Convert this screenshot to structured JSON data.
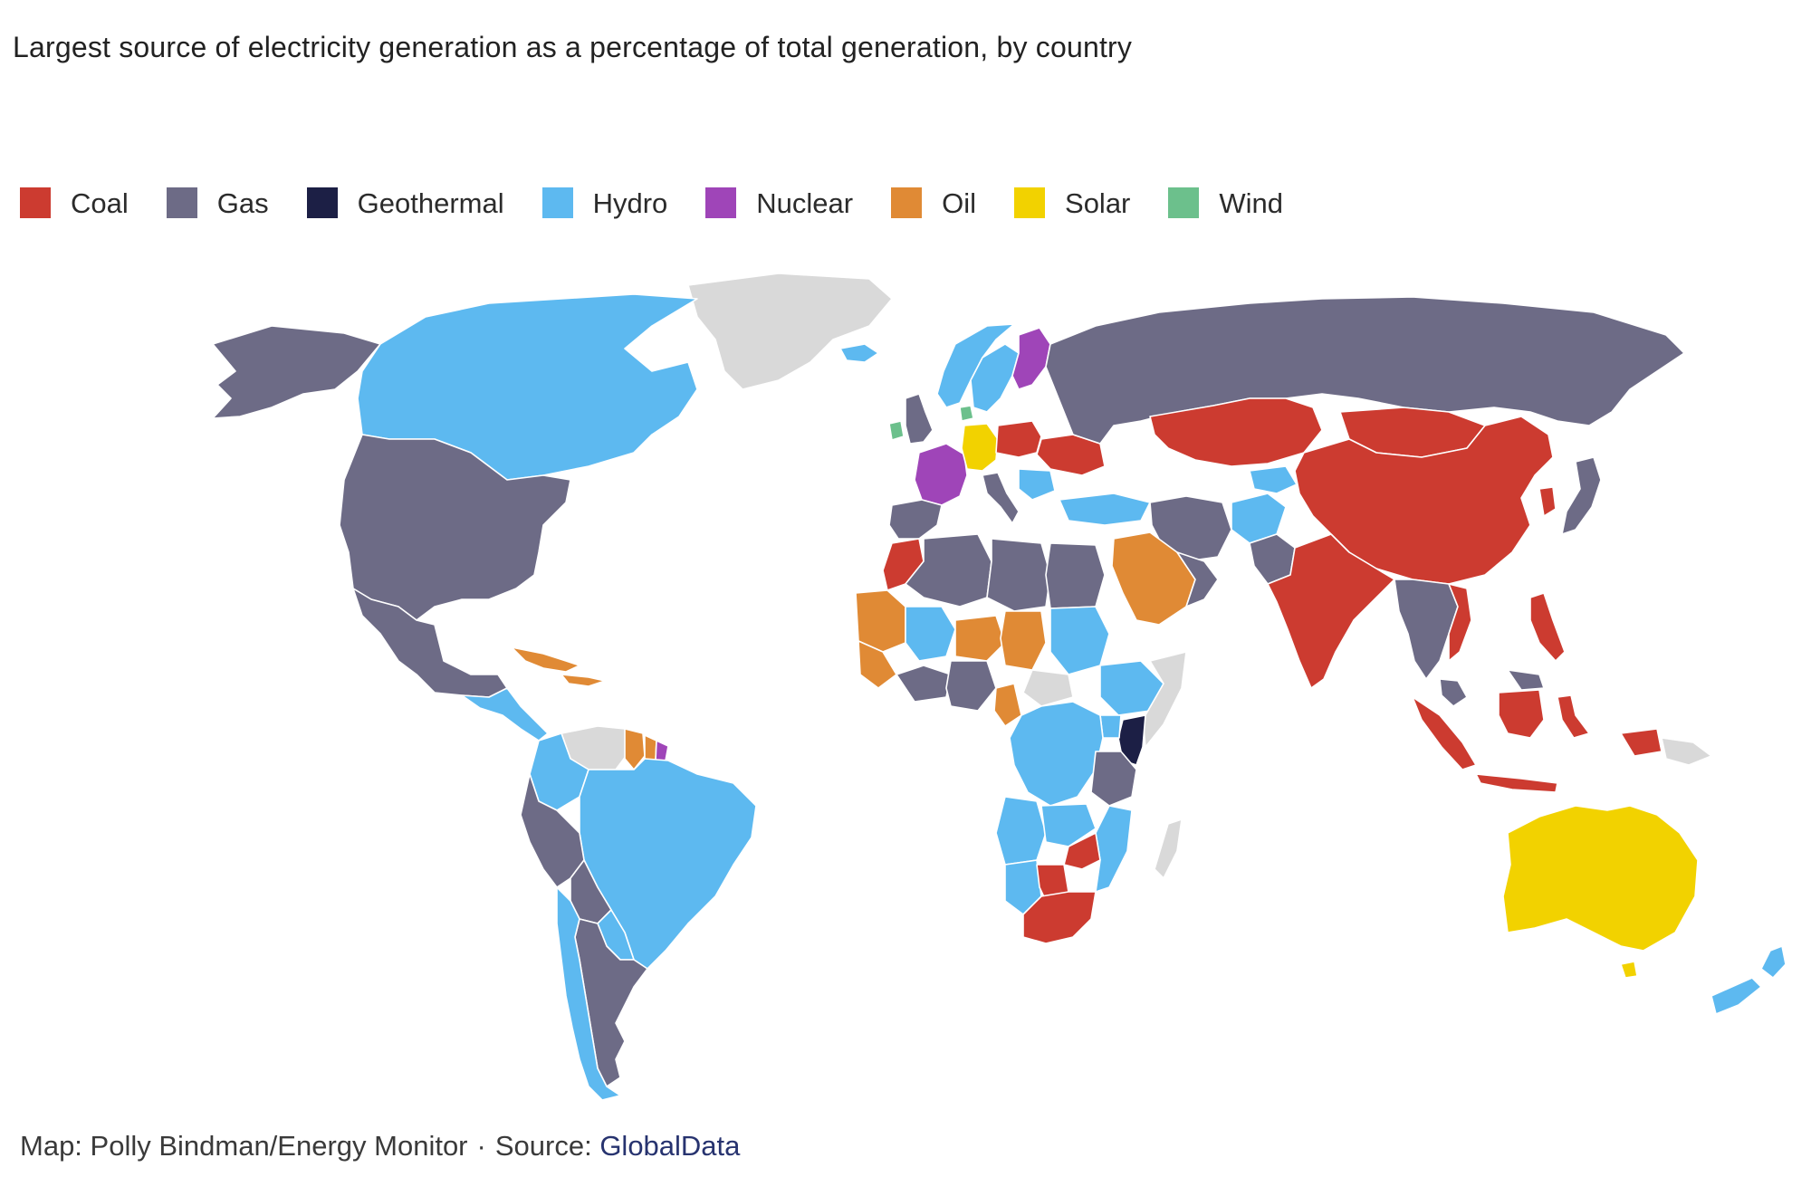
{
  "title": "Largest source of electricity generation as a percentage of total generation, by country",
  "legend": [
    {
      "label": "Coal",
      "color": "#cc3b30"
    },
    {
      "label": "Gas",
      "color": "#6d6b86"
    },
    {
      "label": "Geothermal",
      "color": "#1c1f45"
    },
    {
      "label": "Hydro",
      "color": "#5db9f0"
    },
    {
      "label": "Nuclear",
      "color": "#9f45b8"
    },
    {
      "label": "Oil",
      "color": "#e08a35"
    },
    {
      "label": "Solar",
      "color": "#f2d200"
    },
    {
      "label": "Wind",
      "color": "#6cc08c"
    }
  ],
  "no_data_color": "#d9d9d9",
  "credit": {
    "map": "Map: Polly Bindman/Energy Monitor",
    "separator": "·",
    "source_label": "Source:",
    "source_name": "GlobalData"
  },
  "map": {
    "regions": [
      {
        "name": "Greenland",
        "fill": "No data"
      },
      {
        "name": "Canada",
        "fill": "Hydro"
      },
      {
        "name": "Alaska (United States)",
        "fill": "Gas"
      },
      {
        "name": "United States",
        "fill": "Gas"
      },
      {
        "name": "Mexico",
        "fill": "Gas"
      },
      {
        "name": "Central America",
        "fill": "Hydro"
      },
      {
        "name": "Caribbean",
        "fill": "Oil"
      },
      {
        "name": "Venezuela",
        "fill": "No data"
      },
      {
        "name": "Guyana",
        "fill": "Oil"
      },
      {
        "name": "Suriname",
        "fill": "Oil"
      },
      {
        "name": "French Guiana",
        "fill": "Nuclear"
      },
      {
        "name": "Brazil",
        "fill": "Hydro"
      },
      {
        "name": "Colombia",
        "fill": "Hydro"
      },
      {
        "name": "Peru",
        "fill": "Gas"
      },
      {
        "name": "Bolivia",
        "fill": "Gas"
      },
      {
        "name": "Paraguay",
        "fill": "Hydro"
      },
      {
        "name": "Argentina",
        "fill": "Gas"
      },
      {
        "name": "Chile",
        "fill": "Hydro"
      },
      {
        "name": "Iceland",
        "fill": "Hydro"
      },
      {
        "name": "Norway",
        "fill": "Hydro"
      },
      {
        "name": "Sweden",
        "fill": "Hydro"
      },
      {
        "name": "Finland",
        "fill": "Nuclear"
      },
      {
        "name": "Denmark",
        "fill": "Wind"
      },
      {
        "name": "Ireland",
        "fill": "Wind"
      },
      {
        "name": "United Kingdom",
        "fill": "Gas"
      },
      {
        "name": "France",
        "fill": "Nuclear"
      },
      {
        "name": "Germany",
        "fill": "Solar"
      },
      {
        "name": "Poland",
        "fill": "Coal"
      },
      {
        "name": "Iberia",
        "fill": "Gas"
      },
      {
        "name": "Italy",
        "fill": "Gas"
      },
      {
        "name": "Turkey",
        "fill": "Hydro"
      },
      {
        "name": "Russia",
        "fill": "Gas"
      },
      {
        "name": "Kazakhstan",
        "fill": "Coal"
      },
      {
        "name": "China",
        "fill": "Coal"
      },
      {
        "name": "Mongolia",
        "fill": "Coal"
      },
      {
        "name": "India",
        "fill": "Coal"
      },
      {
        "name": "Iran",
        "fill": "Gas"
      },
      {
        "name": "Afghanistan",
        "fill": "Hydro"
      },
      {
        "name": "Saudi Arabia",
        "fill": "Oil"
      },
      {
        "name": "Egypt",
        "fill": "Gas"
      },
      {
        "name": "Libya",
        "fill": "Gas"
      },
      {
        "name": "Algeria",
        "fill": "Gas"
      },
      {
        "name": "Morocco",
        "fill": "Coal"
      },
      {
        "name": "Mauritania",
        "fill": "Oil"
      },
      {
        "name": "Mali",
        "fill": "Hydro"
      },
      {
        "name": "Niger",
        "fill": "Oil"
      },
      {
        "name": "Chad",
        "fill": "Oil"
      },
      {
        "name": "Nigeria",
        "fill": "Gas"
      },
      {
        "name": "Sudan",
        "fill": "Hydro"
      },
      {
        "name": "Ethiopia",
        "fill": "Hydro"
      },
      {
        "name": "Somalia",
        "fill": "No data"
      },
      {
        "name": "Kenya",
        "fill": "Geothermal"
      },
      {
        "name": "Tanzania",
        "fill": "Gas"
      },
      {
        "name": "DR Congo",
        "fill": "Hydro"
      },
      {
        "name": "Angola",
        "fill": "Hydro"
      },
      {
        "name": "Zambia",
        "fill": "Hydro"
      },
      {
        "name": "Zimbabwe",
        "fill": "Coal"
      },
      {
        "name": "Mozambique",
        "fill": "Hydro"
      },
      {
        "name": "Botswana",
        "fill": "Coal"
      },
      {
        "name": "South Africa",
        "fill": "Coal"
      },
      {
        "name": "Madagascar",
        "fill": "No data"
      },
      {
        "name": "Japan",
        "fill": "Gas"
      },
      {
        "name": "South Korea",
        "fill": "Coal"
      },
      {
        "name": "Southeast Asia mainland",
        "fill": "Gas"
      },
      {
        "name": "Vietnam",
        "fill": "Coal"
      },
      {
        "name": "Philippines",
        "fill": "Coal"
      },
      {
        "name": "Malaysia",
        "fill": "Gas"
      },
      {
        "name": "Indonesia",
        "fill": "Coal"
      },
      {
        "name": "Papua New Guinea",
        "fill": "No data"
      },
      {
        "name": "Australia",
        "fill": "Solar"
      },
      {
        "name": "New Zealand",
        "fill": "Hydro"
      }
    ]
  }
}
